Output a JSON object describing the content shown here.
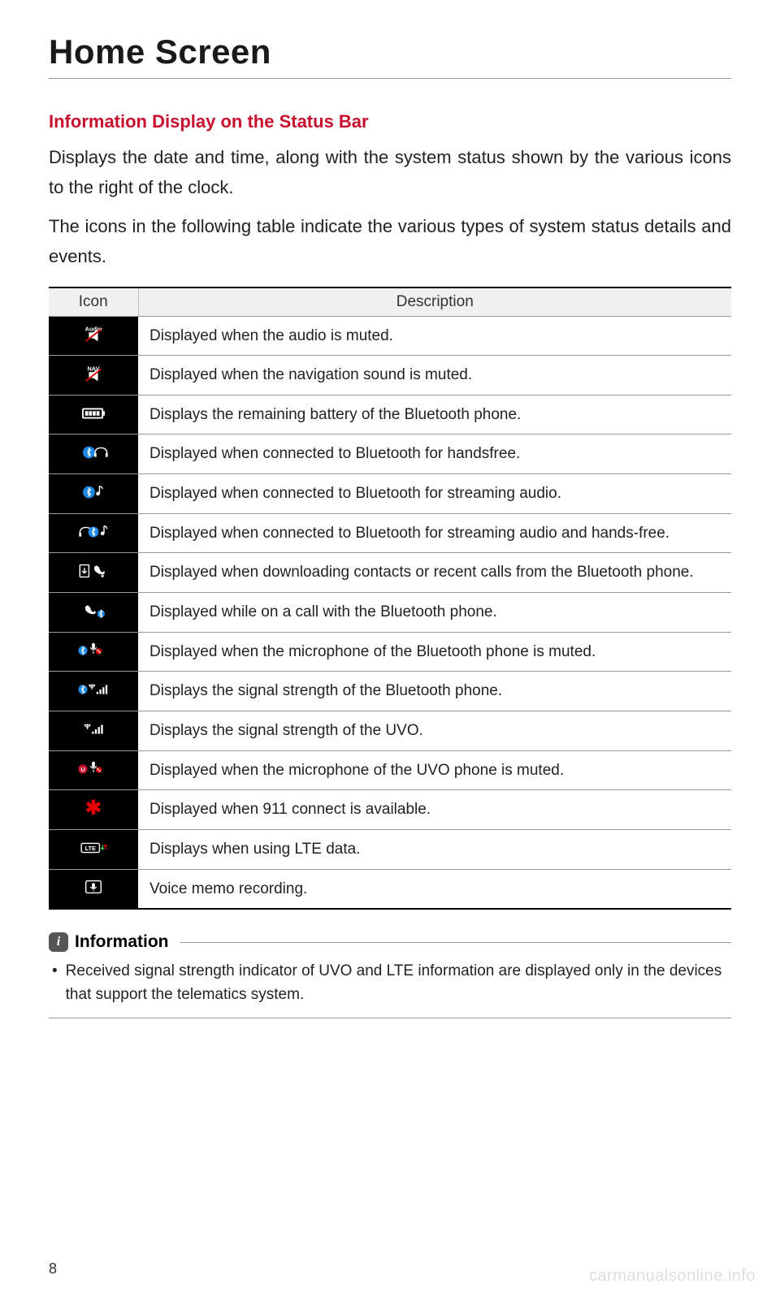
{
  "pageTitle": "Home Screen",
  "sectionHeading": "Information Display on the Status Bar",
  "para1": "Displays the date and time, along with the system status shown by the various icons to the right of the clock.",
  "para2": "The icons in the following table indicate the various types of system status details and events.",
  "table": {
    "colIcon": "Icon",
    "colDesc": "Description",
    "rows": [
      {
        "icon": "audio-mute",
        "desc": "Displayed when the audio is muted."
      },
      {
        "icon": "nav-mute",
        "desc": "Displayed when the navigation sound is muted."
      },
      {
        "icon": "battery",
        "desc": "Displays the remaining battery of the Bluetooth phone."
      },
      {
        "icon": "bt-handsfree",
        "desc": "Displayed when connected to Bluetooth for handsfree."
      },
      {
        "icon": "bt-audio",
        "desc": "Displayed when connected to Bluetooth for streaming audio."
      },
      {
        "icon": "bt-audio-hf",
        "desc": "Displayed when connected to Bluetooth for streaming audio and hands-free."
      },
      {
        "icon": "download-contacts",
        "desc": "Displayed when downloading contacts or recent calls from the Bluetooth phone."
      },
      {
        "icon": "on-call",
        "desc": "Displayed while on a call with the Bluetooth phone."
      },
      {
        "icon": "bt-mic-mute",
        "desc": "Displayed when the microphone of the Bluetooth phone is muted."
      },
      {
        "icon": "bt-signal",
        "desc": "Displays the signal strength of the Bluetooth phone."
      },
      {
        "icon": "uvo-signal",
        "desc": "Displays the signal strength of the UVO."
      },
      {
        "icon": "uvo-mic-mute",
        "desc": "Displayed when the microphone of the UVO phone is muted."
      },
      {
        "icon": "911",
        "desc": "Displayed when 911 connect is available."
      },
      {
        "icon": "lte",
        "desc": "Displays when using LTE data."
      },
      {
        "icon": "voice-memo",
        "desc": "Voice memo recording."
      }
    ]
  },
  "info": {
    "badge": "i",
    "label": "Information",
    "bullet": "Received signal strength indicator of UVO and LTE information are displayed only in the devices that support the telematics system."
  },
  "pageNumber": "8",
  "watermark": "carmanualsonline.info",
  "colors": {
    "heading": "#c8102e",
    "iconBg": "#000000",
    "iconFg": "#ffffff",
    "accent911": "#e60000",
    "btBlue": "#1e88e5",
    "uvoRed": "#c8102e",
    "lteGreen": "#2ecc40"
  }
}
